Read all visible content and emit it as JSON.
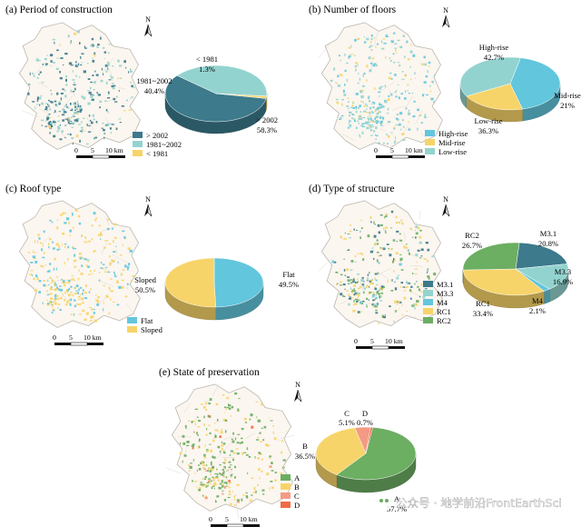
{
  "figure": {
    "watermark": "公众号 · 地学前沿FrontEarthSci",
    "scale_bar": {
      "zero": "0",
      "mid": "5",
      "end": "10 km"
    },
    "north_label": "N"
  },
  "colors": {
    "teal_dark": "#3c7a8c",
    "teal_light": "#93d3cf",
    "yellow": "#f7d469",
    "sky_blue": "#62c6dd",
    "green": "#6cae62",
    "salmon": "#f49a84",
    "orange_red": "#f06a47"
  },
  "chart_data": [
    {
      "id": "a",
      "type": "pie",
      "title": "(a) Period of construction",
      "slices": [
        {
          "name": "> 2002",
          "value": 58.3,
          "label": "> 2002",
          "pct": "58.3%",
          "color": "#3c7a8c"
        },
        {
          "name": "1981~2002",
          "value": 40.4,
          "label": "1981~2002",
          "pct": "40.4%",
          "color": "#93d3cf"
        },
        {
          "name": "< 1981",
          "value": 1.3,
          "label": "< 1981",
          "pct": "1.3%",
          "color": "#f7d469"
        }
      ],
      "legend": [
        "> 2002",
        "1981~2002",
        "< 1981"
      ],
      "legend_colors": [
        "#3c7a8c",
        "#93d3cf",
        "#f7d469"
      ]
    },
    {
      "id": "b",
      "type": "pie",
      "title": "(b) Number of floors",
      "slices": [
        {
          "name": "High-rise",
          "value": 42.7,
          "label": "High-rise",
          "pct": "42.7%",
          "color": "#62c6dd"
        },
        {
          "name": "Mid-rise",
          "value": 21,
          "label": "Mid-rise",
          "pct": "21%",
          "color": "#f7d469"
        },
        {
          "name": "Low-rise",
          "value": 36.3,
          "label": "Low-rise",
          "pct": "36.3%",
          "color": "#93d3cf"
        }
      ],
      "legend": [
        "High-rise",
        "Mid-rise",
        "Low-rise"
      ],
      "legend_colors": [
        "#62c6dd",
        "#f7d469",
        "#93d3cf"
      ]
    },
    {
      "id": "c",
      "type": "pie",
      "title": "(c) Roof type",
      "slices": [
        {
          "name": "Flat",
          "value": 49.5,
          "label": "Flat",
          "pct": "49.5%",
          "color": "#62c6dd"
        },
        {
          "name": "Sloped",
          "value": 50.5,
          "label": "Sloped",
          "pct": "50.5%",
          "color": "#f7d469"
        }
      ],
      "legend": [
        "Flat",
        "Sloped"
      ],
      "legend_colors": [
        "#62c6dd",
        "#f7d469"
      ]
    },
    {
      "id": "d",
      "type": "pie",
      "title": "(d) Type of structure",
      "slices": [
        {
          "name": "M3.1",
          "value": 20.8,
          "label": "M3.1",
          "pct": "20.8%",
          "color": "#3c7a8c"
        },
        {
          "name": "M3.3",
          "value": 16.9,
          "label": "M3.3",
          "pct": "16.9%",
          "color": "#93d3cf"
        },
        {
          "name": "M4",
          "value": 2.1,
          "label": "M4",
          "pct": "2.1%",
          "color": "#62c6dd"
        },
        {
          "name": "RC1",
          "value": 33.4,
          "label": "RC1",
          "pct": "33.4%",
          "color": "#f7d469"
        },
        {
          "name": "RC2",
          "value": 26.7,
          "label": "RC2",
          "pct": "26.7%",
          "color": "#6cae62"
        }
      ],
      "legend": [
        "M3.1",
        "M3.3",
        "M4",
        "RC1",
        "RC2"
      ],
      "legend_colors": [
        "#3c7a8c",
        "#93d3cf",
        "#62c6dd",
        "#f7d469",
        "#6cae62"
      ]
    },
    {
      "id": "e",
      "type": "pie",
      "title": "(e) State of preservation",
      "slices": [
        {
          "name": "A",
          "value": 57.7,
          "label": "A",
          "pct": "57.7%",
          "color": "#6cae62"
        },
        {
          "name": "B",
          "value": 36.5,
          "label": "B",
          "pct": "36.5%",
          "color": "#f7d469"
        },
        {
          "name": "C",
          "value": 5.1,
          "label": "C",
          "pct": "5.1%",
          "color": "#f49a84"
        },
        {
          "name": "D",
          "value": 0.7,
          "label": "D",
          "pct": "0.7%",
          "color": "#f06a47"
        }
      ],
      "legend": [
        "A",
        "B",
        "C",
        "D"
      ],
      "legend_colors": [
        "#6cae62",
        "#f7d469",
        "#f49a84",
        "#f06a47"
      ]
    }
  ]
}
